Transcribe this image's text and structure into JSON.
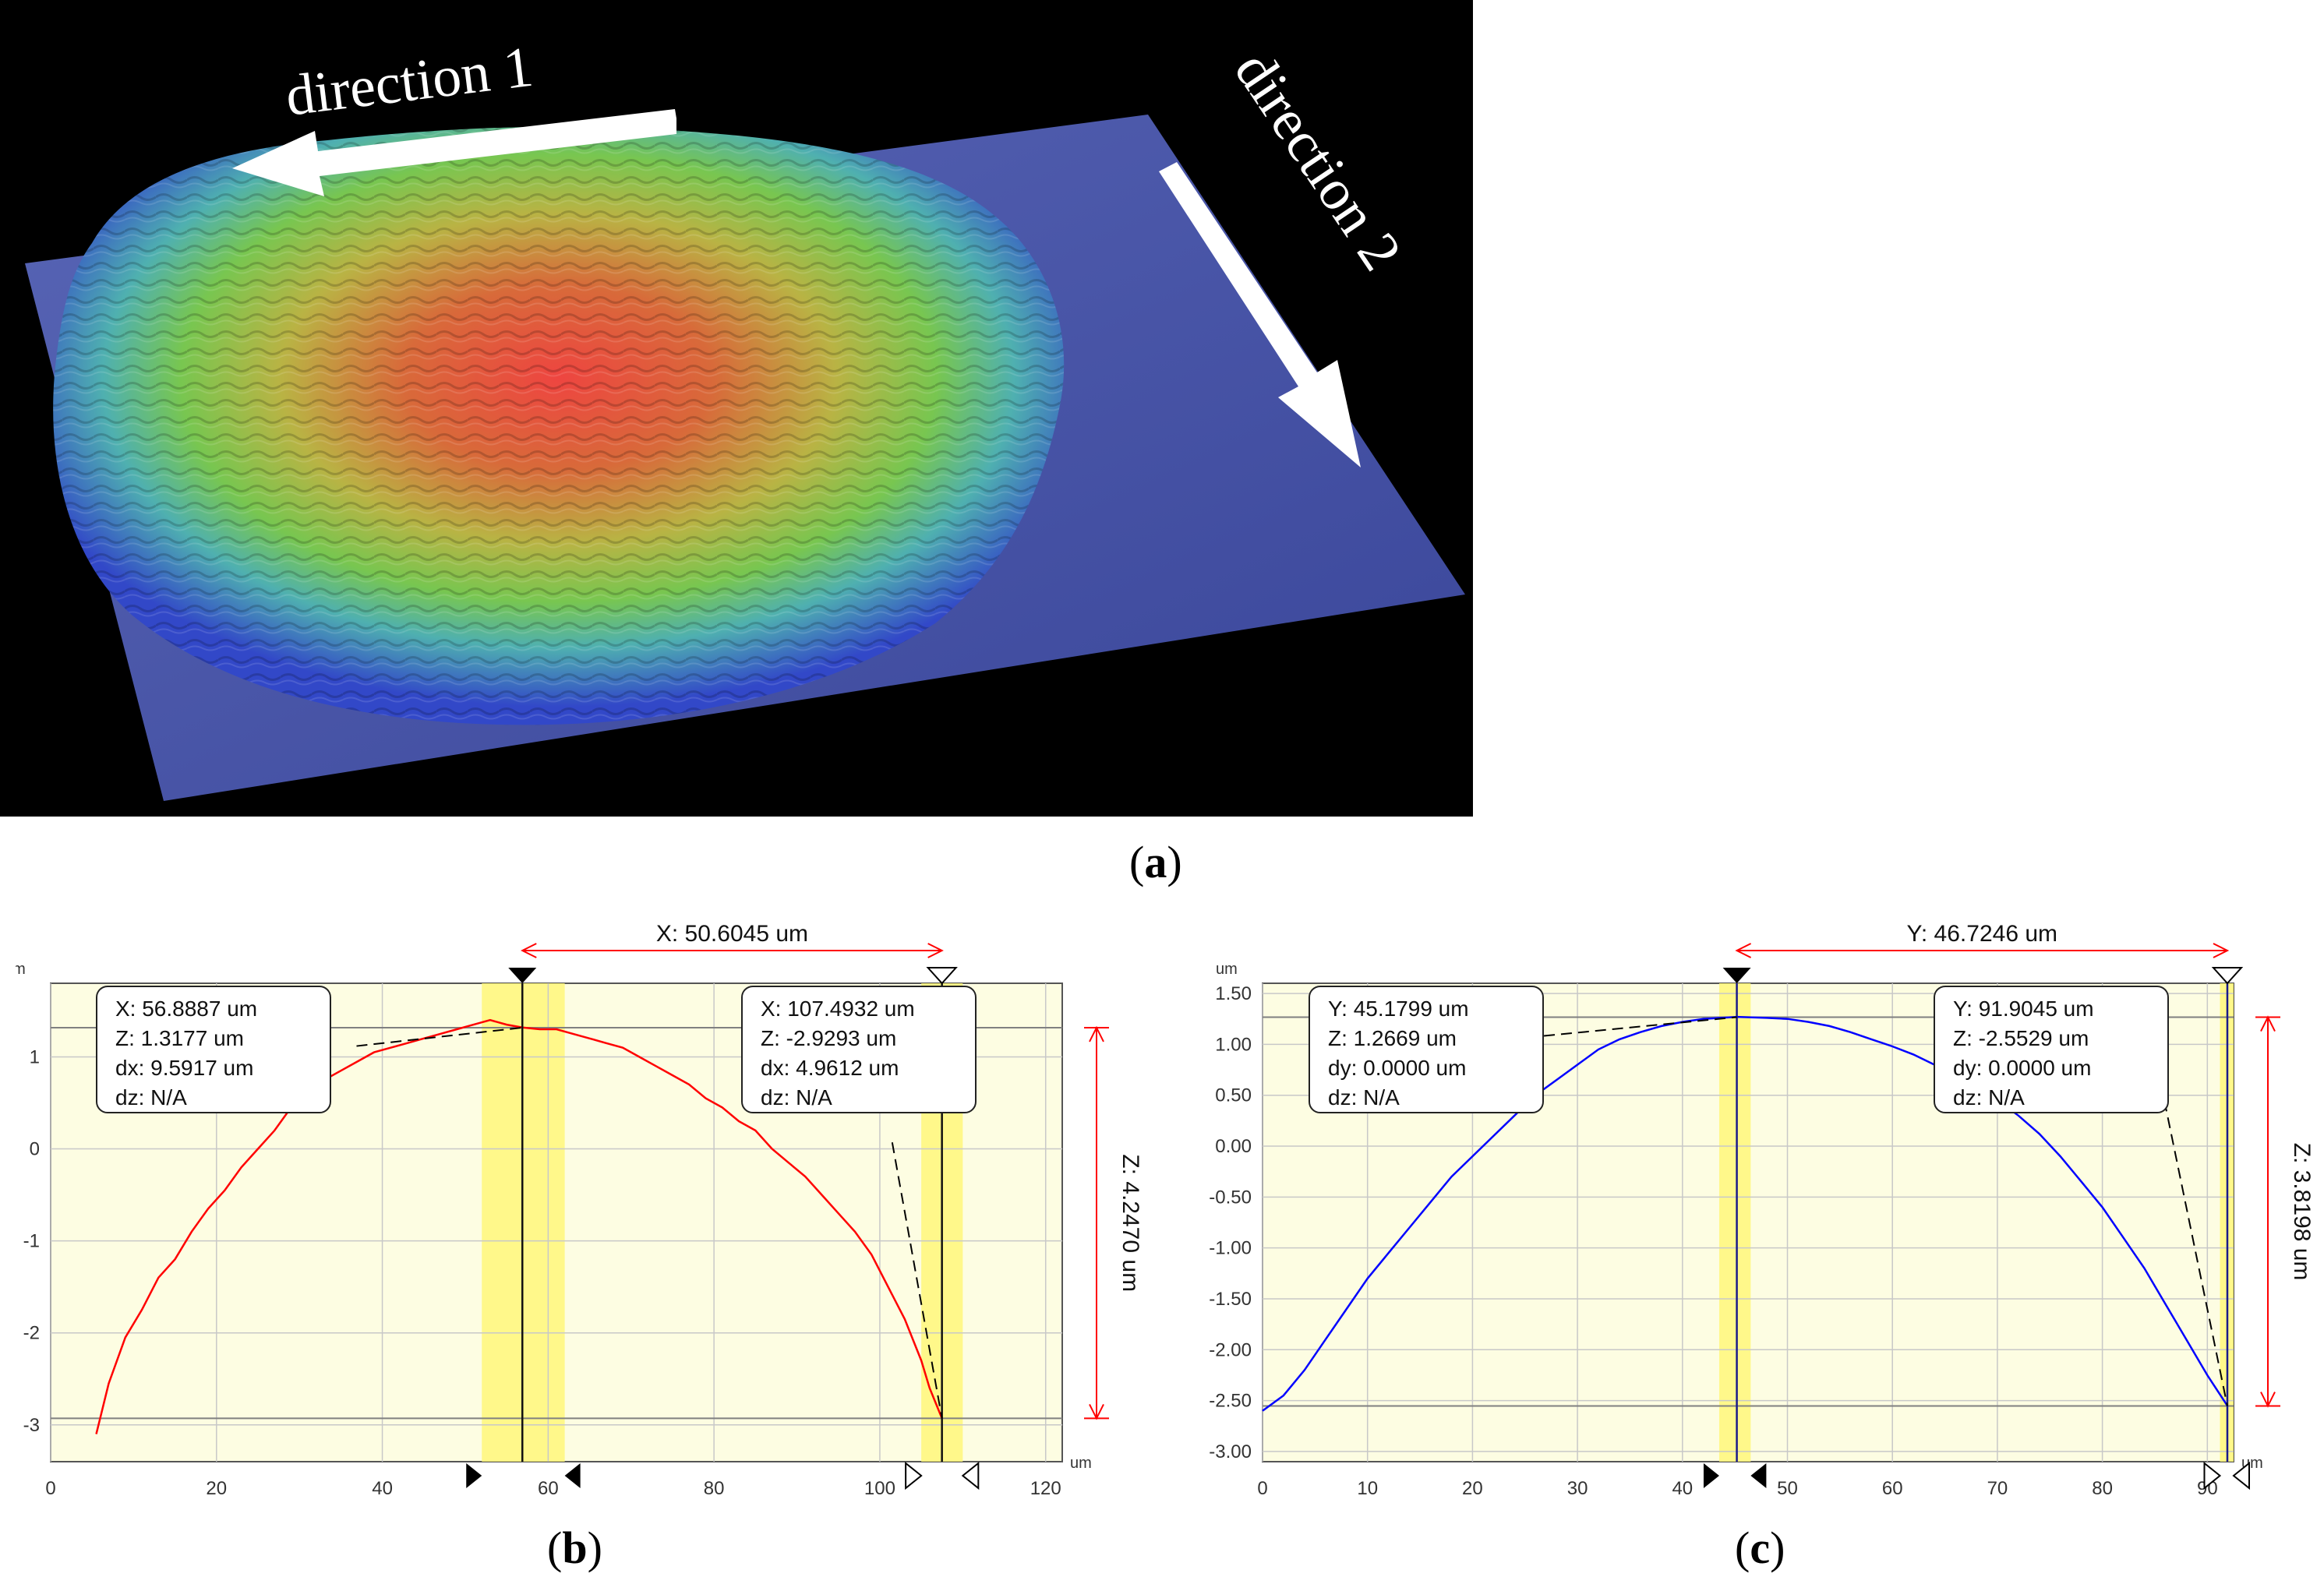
{
  "panel_a": {
    "direction_1_label": "direction 1",
    "direction_2_label": "direction 2",
    "caption": "a",
    "colors": {
      "background": "#000000",
      "plate": "#4a57a8",
      "peak": "#e8403a",
      "mid": "#7fc84a",
      "edge": "#3c55d0",
      "arrow": "#ffffff"
    }
  },
  "chart_data": [
    {
      "type": "line",
      "caption": "b",
      "unit_label": "um",
      "x_unit": "um",
      "xlim": [
        0,
        122
      ],
      "ylim": [
        -3.4,
        1.8
      ],
      "x_ticks": [
        0,
        20,
        40,
        60,
        80,
        100,
        120
      ],
      "y_ticks": [
        -3,
        -2,
        -1,
        0,
        1
      ],
      "y_tick_labels": [
        "-3",
        "-2",
        "-1",
        "0",
        "1"
      ],
      "series": [
        {
          "color": "#ff0000",
          "x": [
            5.5,
            7,
            9,
            11,
            13,
            15,
            17,
            19,
            21,
            23,
            25,
            27,
            29,
            31,
            33,
            35,
            37,
            39,
            41,
            43,
            45,
            47,
            49,
            51,
            53,
            55,
            56.9,
            59,
            61,
            63,
            65,
            67,
            69,
            71,
            73,
            75,
            77,
            79,
            81,
            83,
            85,
            87,
            89,
            91,
            93,
            95,
            97,
            99,
            101,
            103,
            105,
            106,
            107.5
          ],
          "y": [
            -3.1,
            -2.55,
            -2.05,
            -1.75,
            -1.4,
            -1.2,
            -0.9,
            -0.65,
            -0.45,
            -0.2,
            0.0,
            0.2,
            0.45,
            0.6,
            0.75,
            0.85,
            0.95,
            1.05,
            1.1,
            1.15,
            1.2,
            1.25,
            1.3,
            1.35,
            1.4,
            1.35,
            1.32,
            1.3,
            1.3,
            1.25,
            1.2,
            1.15,
            1.1,
            1.0,
            0.9,
            0.8,
            0.7,
            0.55,
            0.45,
            0.3,
            0.2,
            0.0,
            -0.15,
            -0.3,
            -0.5,
            -0.7,
            -0.9,
            -1.15,
            -1.5,
            -1.85,
            -2.3,
            -2.6,
            -2.93
          ]
        }
      ],
      "cursor_1": {
        "x": 56.8887,
        "band": [
          52,
          62
        ],
        "box": [
          "X: 56.8887 um",
          "Z: 1.3177 um",
          "dx: 9.5917 um",
          "dz: N/A"
        ]
      },
      "cursor_2": {
        "x": 107.4932,
        "band": [
          105,
          110
        ],
        "box": [
          "X: 107.4932 um",
          "Z: -2.9293 um",
          "dx: 4.9612 um",
          "dz: N/A"
        ]
      },
      "h_lines": [
        1.3177,
        -2.9293
      ],
      "span_label": "X: 50.6045 um",
      "z_label": "Z: 4.2470 um",
      "colors": {
        "plot_bg": "#fdfde2",
        "band": "#fff77a",
        "measure": "#ff0000"
      }
    },
    {
      "type": "line",
      "caption": "c",
      "unit_label": "um",
      "x_unit": "um",
      "xlim": [
        0,
        92.5
      ],
      "ylim": [
        -3.1,
        1.6
      ],
      "x_ticks": [
        0,
        10,
        20,
        30,
        40,
        50,
        60,
        70,
        80,
        90
      ],
      "y_ticks": [
        1.5,
        1.0,
        0.5,
        0.0,
        -0.5,
        -1.0,
        -1.5,
        -2.0,
        -2.5,
        -3.0
      ],
      "y_tick_labels": [
        "1.50",
        "1.00",
        "0.50",
        "0.00",
        "-0.50",
        "-1.00",
        "-1.50",
        "-2.00",
        "-2.50",
        "-3.00"
      ],
      "series": [
        {
          "color": "#0000ff",
          "x": [
            0,
            2,
            4,
            6,
            8,
            10,
            12,
            14,
            16,
            18,
            20,
            22,
            24,
            26,
            28,
            30,
            32,
            34,
            36,
            38,
            40,
            42,
            45.18,
            48,
            50,
            52,
            54,
            56,
            58,
            60,
            62,
            64,
            66,
            68,
            70,
            72,
            74,
            76,
            78,
            80,
            82,
            84,
            86,
            88,
            90,
            91.9
          ],
          "y": [
            -2.6,
            -2.45,
            -2.2,
            -1.9,
            -1.6,
            -1.3,
            -1.05,
            -0.8,
            -0.55,
            -0.3,
            -0.1,
            0.1,
            0.3,
            0.5,
            0.65,
            0.8,
            0.95,
            1.05,
            1.12,
            1.18,
            1.22,
            1.25,
            1.27,
            1.26,
            1.25,
            1.22,
            1.18,
            1.12,
            1.05,
            0.98,
            0.9,
            0.8,
            0.7,
            0.58,
            0.45,
            0.3,
            0.12,
            -0.1,
            -0.35,
            -0.6,
            -0.9,
            -1.2,
            -1.55,
            -1.9,
            -2.25,
            -2.55
          ]
        }
      ],
      "cursor_1": {
        "x": 45.1799,
        "band": [
          43.5,
          46.5
        ],
        "box": [
          "Y: 45.1799 um",
          "Z: 1.2669 um",
          "dy: 0.0000 um",
          "dz: N/A"
        ]
      },
      "cursor_2": {
        "x": 91.9045,
        "band": [
          91.2,
          92.5
        ],
        "box": [
          "Y: 91.9045 um",
          "Z: -2.5529 um",
          "dy: 0.0000 um",
          "dz: N/A"
        ]
      },
      "h_lines": [
        1.2669,
        -2.5529
      ],
      "span_label": "Y: 46.7246 um",
      "z_label": "Z: 3.8198 um",
      "colors": {
        "plot_bg": "#fdfde2",
        "band": "#fff77a",
        "measure": "#ff0000"
      }
    }
  ]
}
